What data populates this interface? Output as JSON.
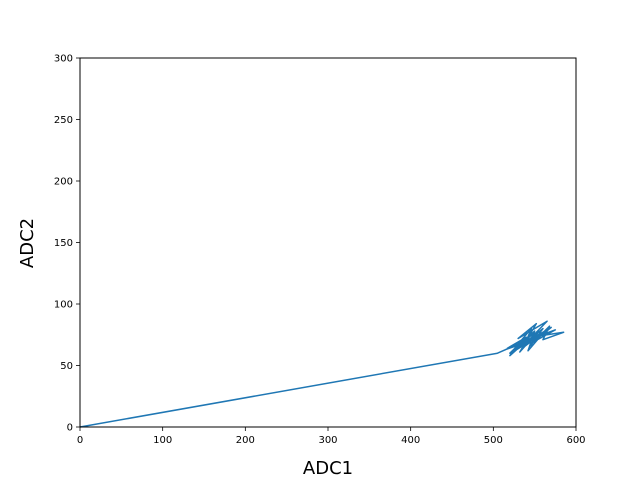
{
  "chart_data": {
    "type": "line",
    "title": "",
    "xlabel": "ADC1",
    "ylabel": "ADC2",
    "xlim": [
      0,
      600
    ],
    "ylim": [
      0,
      300
    ],
    "xticks": [
      "0",
      "100",
      "200",
      "300",
      "400",
      "500",
      "600"
    ],
    "yticks": [
      "0",
      "50",
      "100",
      "150",
      "200",
      "250",
      "300"
    ],
    "grid": false,
    "legend": "none",
    "series": [
      {
        "color": "#1f77b4",
        "x": [
          0,
          505,
          515,
          528,
          520,
          540,
          532,
          548,
          535,
          555,
          545,
          560,
          538,
          552,
          530,
          565,
          542,
          570,
          548,
          575,
          555,
          585,
          560,
          568,
          547,
          558,
          537,
          550,
          526,
          545,
          520,
          540,
          517,
          535,
          550,
          542,
          556,
          528,
          546,
          538,
          562,
          544,
          551,
          533,
          549,
          541
        ],
        "y": [
          0,
          60,
          63,
          66,
          58,
          70,
          61,
          73,
          64,
          78,
          66,
          80,
          68,
          84,
          72,
          86,
          70,
          81,
          69,
          79,
          74,
          77,
          71,
          82,
          68,
          76,
          65,
          72,
          62,
          74,
          60,
          73,
          64,
          69,
          78,
          62,
          73,
          66,
          80,
          67,
          77,
          70,
          74,
          68,
          76,
          72
        ]
      }
    ]
  }
}
